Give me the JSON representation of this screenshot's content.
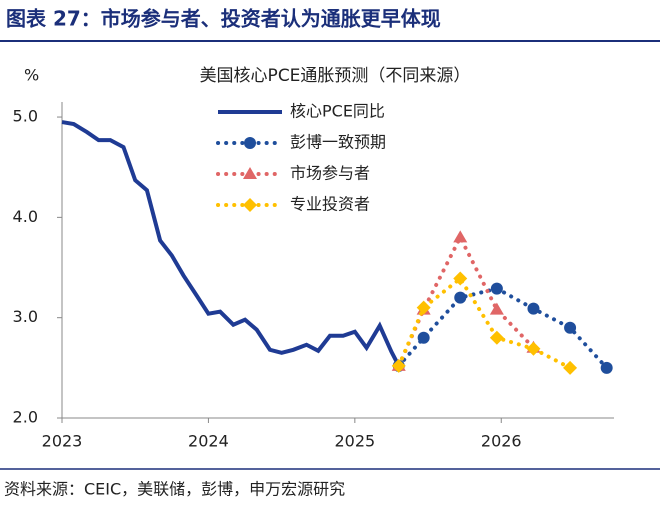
{
  "header": {
    "title": "图表 27：市场参与者、投资者认为通胀更早体现"
  },
  "chart_data": {
    "type": "line",
    "title": "美国核心PCE通胀预测（不同来源）",
    "ylabel": "%",
    "xlim": [
      2023,
      2026.77
    ],
    "ylim": [
      2,
      5.15
    ],
    "xticks": [
      2023,
      2024,
      2025,
      2026
    ],
    "yticks": [
      {
        "value": 2,
        "label": "2.0"
      },
      {
        "value": 3,
        "label": "3.0"
      },
      {
        "value": 4,
        "label": "4.0"
      },
      {
        "value": 5,
        "label": "5.0"
      }
    ],
    "series": [
      {
        "name": "核心PCE同比",
        "color": "#1f3b94",
        "style": "solid",
        "marker": "none",
        "x": [
          2023.0,
          2023.08,
          2023.17,
          2023.25,
          2023.33,
          2023.42,
          2023.5,
          2023.58,
          2023.67,
          2023.75,
          2023.83,
          2023.92,
          2024.0,
          2024.08,
          2024.17,
          2024.25,
          2024.33,
          2024.42,
          2024.5,
          2024.58,
          2024.67,
          2024.75,
          2024.83,
          2024.92,
          2025.0,
          2025.08,
          2025.17,
          2025.25,
          2025.3
        ],
        "values": [
          4.95,
          4.93,
          4.85,
          4.77,
          4.77,
          4.7,
          4.37,
          4.27,
          3.77,
          3.62,
          3.42,
          3.22,
          3.04,
          3.06,
          2.93,
          2.98,
          2.88,
          2.68,
          2.65,
          2.68,
          2.73,
          2.67,
          2.82,
          2.82,
          2.86,
          2.7,
          2.92,
          2.66,
          2.52
        ]
      },
      {
        "name": "彭博一致预期",
        "color": "#1f4e9c",
        "style": "dotted",
        "marker": "circle",
        "x": [
          2025.3,
          2025.47,
          2025.72,
          2025.97,
          2026.22,
          2026.47,
          2026.72
        ],
        "values": [
          2.52,
          2.8,
          3.2,
          3.29,
          3.09,
          2.9,
          2.5
        ]
      },
      {
        "name": "市场参与者",
        "color": "#e06666",
        "style": "dotted",
        "marker": "triangle",
        "x": [
          2025.3,
          2025.47,
          2025.72,
          2025.97,
          2026.22
        ],
        "values": [
          2.52,
          3.08,
          3.8,
          3.08,
          2.7
        ]
      },
      {
        "name": "专业投资者",
        "color": "#ffc000",
        "style": "dotted",
        "marker": "diamond",
        "x": [
          2025.3,
          2025.47,
          2025.72,
          2025.97,
          2026.22,
          2026.47
        ],
        "values": [
          2.52,
          3.1,
          3.39,
          2.8,
          2.69,
          2.5
        ]
      }
    ]
  },
  "footer": {
    "source": "资料来源：CEIC，美联储，彭博，申万宏源研究"
  }
}
